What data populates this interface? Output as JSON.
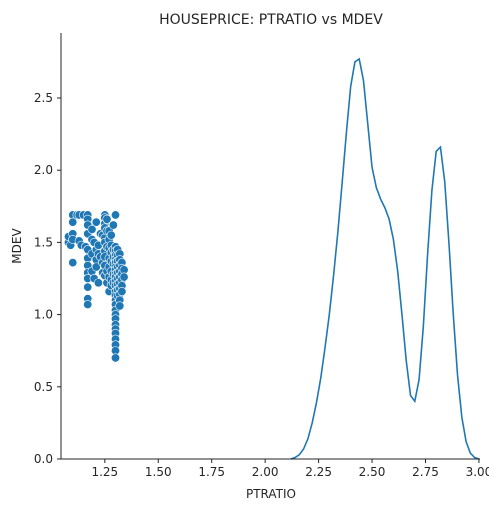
{
  "chart_data": {
    "type": "scatter",
    "title": "HOUSEPRICE: PTRATIO vs MDEV",
    "xlabel": "PTRATIO",
    "ylabel": "MDEV",
    "xlim": [
      1.045,
      3.005
    ],
    "ylim": [
      0.0,
      2.95
    ],
    "x_ticks": [
      1.25,
      1.5,
      1.75,
      2.0,
      2.25,
      2.5,
      2.75,
      3.0
    ],
    "x_tick_labels": [
      "1.25",
      "1.50",
      "1.75",
      "2.00",
      "2.25",
      "2.50",
      "2.75",
      "3.00"
    ],
    "y_ticks": [
      0.0,
      0.5,
      1.0,
      1.5,
      2.0,
      2.5
    ],
    "y_tick_labels": [
      "0.0",
      "0.5",
      "1.0",
      "1.5",
      "2.0",
      "2.5"
    ],
    "grid": false,
    "legend": "none",
    "color": "#1f77b4",
    "series": [
      {
        "type": "scatter",
        "points": [
          [
            1.08,
            1.5
          ],
          [
            1.08,
            1.54
          ],
          [
            1.09,
            1.48
          ],
          [
            1.1,
            1.69
          ],
          [
            1.1,
            1.64
          ],
          [
            1.1,
            1.56
          ],
          [
            1.1,
            1.52
          ],
          [
            1.1,
            1.36
          ],
          [
            1.12,
            1.69
          ],
          [
            1.13,
            1.69
          ],
          [
            1.13,
            1.51
          ],
          [
            1.14,
            1.48
          ],
          [
            1.15,
            1.69
          ],
          [
            1.16,
            1.47
          ],
          [
            1.17,
            1.69
          ],
          [
            1.17,
            1.66
          ],
          [
            1.17,
            1.62
          ],
          [
            1.17,
            1.56
          ],
          [
            1.17,
            1.45
          ],
          [
            1.17,
            1.39
          ],
          [
            1.17,
            1.34
          ],
          [
            1.17,
            1.29
          ],
          [
            1.17,
            1.25
          ],
          [
            1.17,
            1.19
          ],
          [
            1.17,
            1.11
          ],
          [
            1.17,
            1.07
          ],
          [
            1.19,
            1.59
          ],
          [
            1.19,
            1.52
          ],
          [
            1.19,
            1.42
          ],
          [
            1.19,
            1.3
          ],
          [
            1.2,
            1.5
          ],
          [
            1.2,
            1.25
          ],
          [
            1.21,
            1.64
          ],
          [
            1.21,
            1.45
          ],
          [
            1.21,
            1.38
          ],
          [
            1.21,
            1.33
          ],
          [
            1.22,
            1.48
          ],
          [
            1.22,
            1.42
          ],
          [
            1.22,
            1.22
          ],
          [
            1.23,
            1.56
          ],
          [
            1.23,
            1.4
          ],
          [
            1.24,
            1.55
          ],
          [
            1.24,
            1.36
          ],
          [
            1.24,
            1.29
          ],
          [
            1.25,
            1.69
          ],
          [
            1.25,
            1.67
          ],
          [
            1.25,
            1.63
          ],
          [
            1.25,
            1.6
          ],
          [
            1.25,
            1.53
          ],
          [
            1.25,
            1.5
          ],
          [
            1.25,
            1.44
          ],
          [
            1.25,
            1.4
          ],
          [
            1.25,
            1.34
          ],
          [
            1.25,
            1.27
          ],
          [
            1.26,
            1.66
          ],
          [
            1.26,
            1.58
          ],
          [
            1.26,
            1.47
          ],
          [
            1.26,
            1.3
          ],
          [
            1.26,
            1.22
          ],
          [
            1.27,
            1.58
          ],
          [
            1.27,
            1.52
          ],
          [
            1.27,
            1.46
          ],
          [
            1.27,
            1.39
          ],
          [
            1.27,
            1.33
          ],
          [
            1.27,
            1.26
          ],
          [
            1.27,
            1.16
          ],
          [
            1.28,
            1.55
          ],
          [
            1.28,
            1.48
          ],
          [
            1.28,
            1.43
          ],
          [
            1.28,
            1.37
          ],
          [
            1.28,
            1.3
          ],
          [
            1.28,
            1.24
          ],
          [
            1.28,
            1.2
          ],
          [
            1.29,
            1.62
          ],
          [
            1.29,
            1.45
          ],
          [
            1.29,
            1.4
          ],
          [
            1.29,
            1.35
          ],
          [
            1.29,
            1.28
          ],
          [
            1.29,
            1.22
          ],
          [
            1.3,
            1.69
          ],
          [
            1.3,
            1.47
          ],
          [
            1.3,
            1.44
          ],
          [
            1.3,
            1.41
          ],
          [
            1.3,
            1.38
          ],
          [
            1.3,
            1.36
          ],
          [
            1.3,
            1.33
          ],
          [
            1.3,
            1.31
          ],
          [
            1.3,
            1.28
          ],
          [
            1.3,
            1.26
          ],
          [
            1.3,
            1.23
          ],
          [
            1.3,
            1.2
          ],
          [
            1.3,
            1.16
          ],
          [
            1.3,
            1.13
          ],
          [
            1.3,
            1.1
          ],
          [
            1.3,
            1.07
          ],
          [
            1.3,
            1.03
          ],
          [
            1.3,
            1.0
          ],
          [
            1.3,
            0.97
          ],
          [
            1.3,
            0.93
          ],
          [
            1.3,
            0.9
          ],
          [
            1.3,
            0.87
          ],
          [
            1.3,
            0.83
          ],
          [
            1.3,
            0.79
          ],
          [
            1.3,
            0.75
          ],
          [
            1.3,
            0.7
          ],
          [
            1.31,
            1.45
          ],
          [
            1.31,
            1.41
          ],
          [
            1.31,
            1.37
          ],
          [
            1.31,
            1.33
          ],
          [
            1.31,
            1.29
          ],
          [
            1.31,
            1.25
          ],
          [
            1.31,
            1.21
          ],
          [
            1.31,
            1.17
          ],
          [
            1.31,
            1.13
          ],
          [
            1.32,
            1.42
          ],
          [
            1.32,
            1.38
          ],
          [
            1.32,
            1.34
          ],
          [
            1.32,
            1.3
          ],
          [
            1.32,
            1.26
          ],
          [
            1.32,
            1.22
          ],
          [
            1.32,
            1.18
          ],
          [
            1.32,
            1.14
          ],
          [
            1.32,
            1.1
          ],
          [
            1.32,
            1.06
          ],
          [
            1.33,
            1.36
          ],
          [
            1.33,
            1.32
          ],
          [
            1.33,
            1.28
          ],
          [
            1.33,
            1.24
          ],
          [
            1.33,
            1.2
          ],
          [
            1.33,
            1.16
          ],
          [
            1.34,
            1.31
          ],
          [
            1.34,
            1.26
          ]
        ]
      },
      {
        "type": "line",
        "x": [
          2.12,
          2.14,
          2.16,
          2.18,
          2.2,
          2.22,
          2.24,
          2.26,
          2.28,
          2.3,
          2.32,
          2.34,
          2.36,
          2.38,
          2.4,
          2.42,
          2.44,
          2.46,
          2.48,
          2.5,
          2.52,
          2.54,
          2.56,
          2.58,
          2.6,
          2.62,
          2.64,
          2.66,
          2.68,
          2.7,
          2.72,
          2.74,
          2.76,
          2.78,
          2.8,
          2.82,
          2.84,
          2.86,
          2.88,
          2.9,
          2.92,
          2.94,
          2.96,
          2.98,
          3.0
        ],
        "y": [
          0.0,
          0.01,
          0.03,
          0.07,
          0.14,
          0.25,
          0.39,
          0.56,
          0.77,
          1.0,
          1.27,
          1.57,
          1.91,
          2.26,
          2.58,
          2.75,
          2.77,
          2.62,
          2.32,
          2.02,
          1.88,
          1.8,
          1.74,
          1.66,
          1.52,
          1.3,
          1.0,
          0.68,
          0.44,
          0.4,
          0.55,
          0.92,
          1.42,
          1.86,
          2.13,
          2.16,
          1.92,
          1.49,
          1.0,
          0.58,
          0.29,
          0.12,
          0.04,
          0.01,
          0.0
        ]
      }
    ]
  }
}
